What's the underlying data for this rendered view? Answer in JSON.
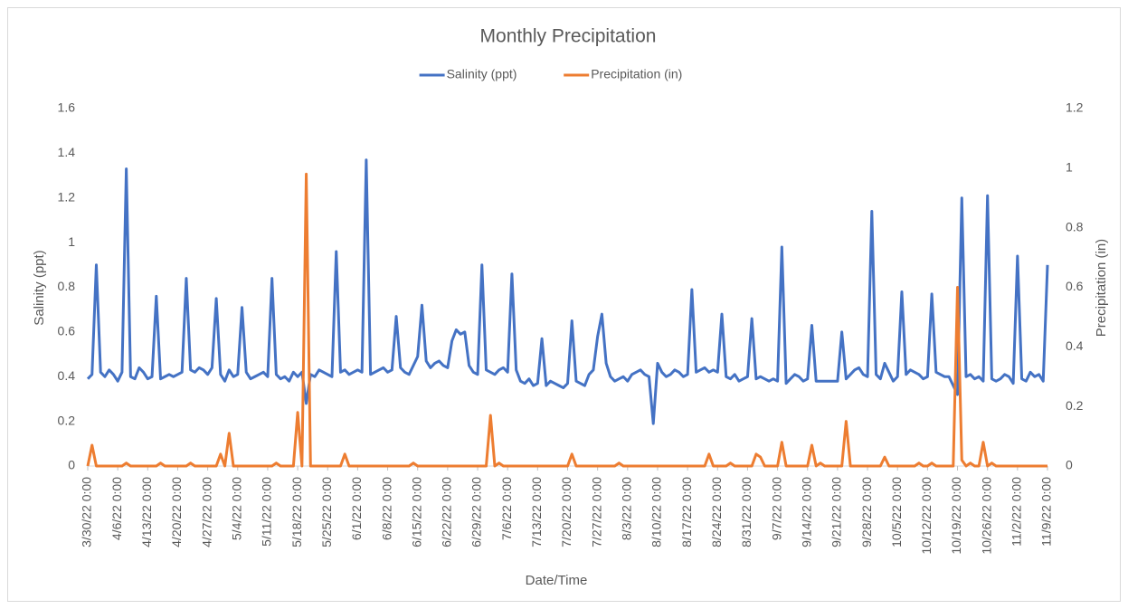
{
  "chart_data": {
    "type": "line",
    "title": "Monthly Precipitation",
    "x_label": "Date/Time",
    "y_label": "Salinity (ppt)",
    "y2_label": "Precipitation (in)",
    "legend": "top",
    "grid": false,
    "ylim": [
      0,
      1.6
    ],
    "yticks": [
      0,
      0.2,
      0.4,
      0.6,
      0.8,
      1,
      1.2,
      1.4,
      1.6
    ],
    "y2lim": [
      0,
      1.2
    ],
    "y2ticks": [
      0,
      0.2,
      0.4,
      0.6,
      0.8,
      1,
      1.2
    ],
    "categories": [
      "3/30/22 0:00",
      null,
      null,
      null,
      null,
      null,
      null,
      "4/6/22 0:00",
      null,
      null,
      null,
      null,
      null,
      null,
      "4/13/22 0:00",
      null,
      null,
      null,
      null,
      null,
      null,
      "4/20/22 0:00",
      null,
      null,
      null,
      null,
      null,
      null,
      "4/27/22 0:00",
      null,
      null,
      null,
      null,
      null,
      null,
      "5/4/22 0:00",
      null,
      null,
      null,
      null,
      null,
      null,
      "5/11/22 0:00",
      null,
      null,
      null,
      null,
      null,
      null,
      "5/18/22 0:00",
      null,
      null,
      null,
      null,
      null,
      null,
      "5/25/22 0:00",
      null,
      null,
      null,
      null,
      null,
      null,
      "6/1/22 0:00",
      null,
      null,
      null,
      null,
      null,
      null,
      "6/8/22 0:00",
      null,
      null,
      null,
      null,
      null,
      null,
      "6/15/22 0:00",
      null,
      null,
      null,
      null,
      null,
      null,
      "6/22/22 0:00",
      null,
      null,
      null,
      null,
      null,
      null,
      "6/29/22 0:00",
      null,
      null,
      null,
      null,
      null,
      null,
      "7/6/22 0:00",
      null,
      null,
      null,
      null,
      null,
      null,
      "7/13/22 0:00",
      null,
      null,
      null,
      null,
      null,
      null,
      "7/20/22 0:00",
      null,
      null,
      null,
      null,
      null,
      null,
      "7/27/22 0:00",
      null,
      null,
      null,
      null,
      null,
      null,
      "8/3/22 0:00",
      null,
      null,
      null,
      null,
      null,
      null,
      "8/10/22 0:00",
      null,
      null,
      null,
      null,
      null,
      null,
      "8/17/22 0:00",
      null,
      null,
      null,
      null,
      null,
      null,
      "8/24/22 0:00",
      null,
      null,
      null,
      null,
      null,
      null,
      "8/31/22 0:00",
      null,
      null,
      null,
      null,
      null,
      null,
      "9/7/22 0:00",
      null,
      null,
      null,
      null,
      null,
      null,
      "9/14/22 0:00",
      null,
      null,
      null,
      null,
      null,
      null,
      "9/21/22 0:00",
      null,
      null,
      null,
      null,
      null,
      null,
      "9/28/22 0:00",
      null,
      null,
      null,
      null,
      null,
      null,
      "10/5/22 0:00",
      null,
      null,
      null,
      null,
      null,
      null,
      "10/12/22 0:00",
      null,
      null,
      null,
      null,
      null,
      null,
      "10/19/22 0:00",
      null,
      null,
      null,
      null,
      null,
      null,
      "10/26/22 0:00",
      null,
      null,
      null,
      null,
      null,
      null,
      "11/2/22 0:00",
      null,
      null,
      null,
      null,
      null,
      null,
      "11/9/22 0:00"
    ],
    "series": [
      {
        "name": "Salinity (ppt)",
        "color": "#4472c4",
        "values": [
          0.39,
          0.41,
          0.9,
          0.42,
          0.4,
          0.43,
          0.41,
          0.38,
          0.42,
          1.33,
          0.4,
          0.39,
          0.44,
          0.42,
          0.39,
          0.4,
          0.76,
          0.39,
          0.4,
          0.41,
          0.4,
          0.41,
          0.42,
          0.84,
          0.43,
          0.42,
          0.44,
          0.43,
          0.41,
          0.44,
          0.75,
          0.41,
          0.38,
          0.43,
          0.4,
          0.41,
          0.71,
          0.42,
          0.39,
          0.4,
          0.41,
          0.42,
          0.4,
          0.84,
          0.41,
          0.39,
          0.4,
          0.38,
          0.42,
          0.4,
          0.42,
          0.28,
          0.41,
          0.4,
          0.43,
          0.42,
          0.41,
          0.4,
          0.96,
          0.42,
          0.43,
          0.41,
          0.42,
          0.43,
          0.42,
          1.37,
          0.41,
          0.42,
          0.43,
          0.44,
          0.42,
          0.43,
          0.67,
          0.44,
          0.42,
          0.41,
          0.45,
          0.49,
          0.72,
          0.47,
          0.44,
          0.46,
          0.47,
          0.45,
          0.44,
          0.56,
          0.61,
          0.59,
          0.6,
          0.45,
          0.42,
          0.41,
          0.9,
          0.43,
          0.42,
          0.41,
          0.43,
          0.44,
          0.42,
          0.86,
          0.43,
          0.38,
          0.37,
          0.39,
          0.36,
          0.37,
          0.57,
          0.36,
          0.38,
          0.37,
          0.36,
          0.35,
          0.37,
          0.65,
          0.38,
          0.37,
          0.36,
          0.41,
          0.43,
          0.58,
          0.68,
          0.46,
          0.4,
          0.38,
          0.39,
          0.4,
          0.38,
          0.41,
          0.42,
          0.43,
          0.41,
          0.4,
          0.19,
          0.46,
          0.42,
          0.4,
          0.41,
          0.43,
          0.42,
          0.4,
          0.41,
          0.79,
          0.42,
          0.43,
          0.44,
          0.42,
          0.43,
          0.42,
          0.68,
          0.4,
          0.39,
          0.41,
          0.38,
          0.39,
          0.4,
          0.66,
          0.39,
          0.4,
          0.39,
          0.38,
          0.39,
          0.38,
          0.98,
          0.37,
          0.39,
          0.41,
          0.4,
          0.38,
          0.39,
          0.63,
          0.38,
          0.38,
          0.38,
          0.38,
          0.38,
          0.38,
          0.6,
          0.39,
          0.41,
          0.43,
          0.44,
          0.41,
          0.4,
          1.14,
          0.41,
          0.39,
          0.46,
          0.42,
          0.38,
          0.4,
          0.78,
          0.41,
          0.43,
          0.42,
          0.41,
          0.39,
          0.4,
          0.77,
          0.42,
          0.41,
          0.4,
          0.4,
          0.36,
          0.32,
          1.2,
          0.4,
          0.41,
          0.39,
          0.4,
          0.38,
          1.21,
          0.39,
          0.38,
          0.39,
          0.41,
          0.4,
          0.37,
          0.94,
          0.39,
          0.38,
          0.42,
          0.4,
          0.41,
          0.38,
          0.9
        ]
      },
      {
        "name": "Precipitation (in)",
        "color": "#ed7d31",
        "axis": "y2",
        "values": [
          0,
          0.07,
          0,
          0,
          0,
          0,
          0,
          0,
          0,
          0.01,
          0,
          0,
          0,
          0,
          0,
          0,
          0,
          0.01,
          0,
          0,
          0,
          0,
          0,
          0,
          0.01,
          0,
          0,
          0,
          0,
          0,
          0,
          0.04,
          0,
          0.11,
          0,
          0,
          0,
          0,
          0,
          0,
          0,
          0,
          0,
          0,
          0.01,
          0,
          0,
          0,
          0,
          0.18,
          0,
          0.98,
          0,
          0,
          0,
          0,
          0,
          0,
          0,
          0,
          0.04,
          0,
          0,
          0,
          0,
          0,
          0,
          0,
          0,
          0,
          0,
          0,
          0,
          0,
          0,
          0,
          0.01,
          0,
          0,
          0,
          0,
          0,
          0,
          0,
          0,
          0,
          0,
          0,
          0,
          0,
          0,
          0,
          0,
          0,
          0.17,
          0,
          0.01,
          0,
          0,
          0,
          0,
          0,
          0,
          0,
          0,
          0,
          0,
          0,
          0,
          0,
          0,
          0,
          0,
          0.04,
          0,
          0,
          0,
          0,
          0,
          0,
          0,
          0,
          0,
          0,
          0.01,
          0,
          0,
          0,
          0,
          0,
          0,
          0,
          0,
          0,
          0,
          0,
          0,
          0,
          0,
          0,
          0,
          0,
          0,
          0,
          0,
          0.04,
          0,
          0,
          0,
          0,
          0.01,
          0,
          0,
          0,
          0,
          0,
          0.04,
          0.03,
          0,
          0,
          0,
          0,
          0.08,
          0,
          0,
          0,
          0,
          0,
          0,
          0.07,
          0,
          0.01,
          0,
          0,
          0,
          0,
          0,
          0.15,
          0,
          0,
          0,
          0,
          0,
          0,
          0,
          0,
          0.03,
          0,
          0,
          0,
          0,
          0,
          0,
          0,
          0.01,
          0,
          0,
          0.01,
          0,
          0,
          0,
          0,
          0,
          0.6,
          0.02,
          0,
          0.01,
          0,
          0,
          0.08,
          0,
          0.01,
          0,
          0,
          0,
          0,
          0,
          0,
          0,
          0,
          0,
          0,
          0,
          0,
          0
        ]
      }
    ]
  }
}
